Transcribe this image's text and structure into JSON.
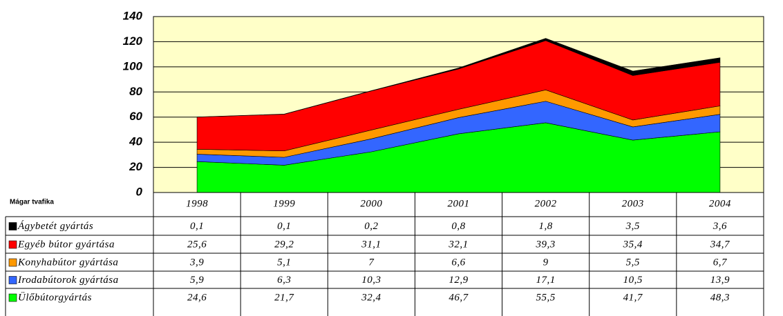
{
  "chart_data": {
    "type": "stacked_area",
    "corner_label": "Mágar tvafika",
    "categories": [
      "1998",
      "1999",
      "2000",
      "2001",
      "2002",
      "2003",
      "2004"
    ],
    "series": [
      {
        "name": "Ágybetét gyártás",
        "color": "#000000",
        "values": [
          0.1,
          0.1,
          0.2,
          0.8,
          1.8,
          3.5,
          3.6
        ],
        "value_labels": [
          "0,1",
          "0,1",
          "0,2",
          "0,8",
          "1,8",
          "3,5",
          "3,6"
        ]
      },
      {
        "name": "Egyéb bútor gyártása",
        "color": "#ff0000",
        "values": [
          25.6,
          29.2,
          31.1,
          32.1,
          39.3,
          35.4,
          34.7
        ],
        "value_labels": [
          "25,6",
          "29,2",
          "31,1",
          "32,1",
          "39,3",
          "35,4",
          "34,7"
        ]
      },
      {
        "name": "Konyhabútor gyártása",
        "color": "#ff9900",
        "values": [
          3.9,
          5.1,
          7,
          6.6,
          9,
          5.5,
          6.7
        ],
        "value_labels": [
          "3,9",
          "5,1",
          "7",
          "6,6",
          "9",
          "5,5",
          "6,7"
        ]
      },
      {
        "name": "Irodabútorok gyártása",
        "color": "#3366ff",
        "values": [
          5.9,
          6.3,
          10.3,
          12.9,
          17.1,
          10.5,
          13.9
        ],
        "value_labels": [
          "5,9",
          "6,3",
          "10,3",
          "12,9",
          "17,1",
          "10,5",
          "13,9"
        ]
      },
      {
        "name": "Ülőbútorgyártás",
        "color": "#00ff00",
        "values": [
          24.6,
          21.7,
          32.4,
          46.7,
          55.5,
          41.7,
          48.3
        ],
        "value_labels": [
          "24,6",
          "21,7",
          "32,4",
          "46,7",
          "55,5",
          "41,7",
          "48,3"
        ]
      }
    ],
    "ylim": [
      0,
      140
    ],
    "yticks": [
      0,
      20,
      40,
      60,
      80,
      100,
      120,
      140
    ],
    "grid": true
  }
}
